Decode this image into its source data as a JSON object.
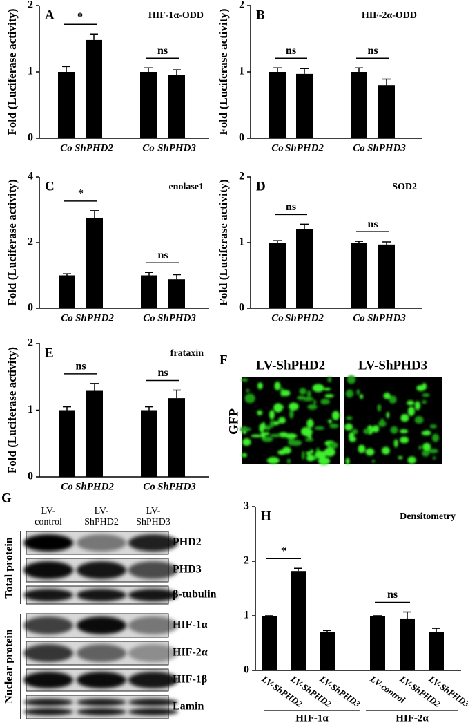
{
  "chart_data": [
    {
      "type": "bar",
      "panel_label": "A",
      "title": "HIF-1α-ODD",
      "ylabel": "Fold (Luciferase activity)",
      "categories": [
        "Co",
        "ShPHD2",
        "Co",
        "ShPHD3"
      ],
      "values": [
        1.0,
        1.48,
        1.0,
        0.95
      ],
      "errors": [
        0.08,
        0.09,
        0.06,
        0.08
      ],
      "color": "#000000",
      "ylim": [
        0,
        2
      ],
      "yticks": [
        0,
        1,
        2
      ],
      "annotations": [
        "*",
        "ns"
      ]
    },
    {
      "type": "bar",
      "panel_label": "B",
      "title": "HIF-2α-ODD",
      "ylabel": "Fold (Luciferase activity)",
      "categories": [
        "Co",
        "ShPHD2",
        "Co",
        "ShPHD3"
      ],
      "values": [
        1.0,
        0.97,
        1.0,
        0.8
      ],
      "errors": [
        0.06,
        0.08,
        0.06,
        0.09
      ],
      "color": "#000000",
      "ylim": [
        0,
        2
      ],
      "yticks": [
        0,
        1,
        2
      ],
      "annotations": [
        "ns",
        "ns"
      ]
    },
    {
      "type": "bar",
      "panel_label": "C",
      "title": "enolase1",
      "ylabel": "Fold (Luciferase activity)",
      "categories": [
        "Co",
        "ShPHD2",
        "Co",
        "ShPHD3"
      ],
      "values": [
        1.0,
        2.75,
        1.0,
        0.88
      ],
      "errors": [
        0.05,
        0.22,
        0.09,
        0.14
      ],
      "color": "#000000",
      "ylim": [
        0,
        4
      ],
      "yticks": [
        0,
        2,
        4
      ],
      "annotations": [
        "*",
        "ns"
      ]
    },
    {
      "type": "bar",
      "panel_label": "D",
      "title": "SOD2",
      "ylabel": "Fold (Luciferase activity)",
      "categories": [
        "Co",
        "ShPHD2",
        "Co",
        "ShPHD3"
      ],
      "values": [
        1.0,
        1.2,
        1.0,
        0.97
      ],
      "errors": [
        0.03,
        0.08,
        0.02,
        0.04
      ],
      "color": "#000000",
      "ylim": [
        0,
        2
      ],
      "yticks": [
        0,
        1,
        2
      ],
      "annotations": [
        "ns",
        "ns"
      ]
    },
    {
      "type": "bar",
      "panel_label": "E",
      "title": "frataxin",
      "ylabel": "Fold (Luciferase activity)",
      "categories": [
        "Co",
        "ShPHD2",
        "Co",
        "ShPHD3"
      ],
      "values": [
        1.0,
        1.29,
        1.0,
        1.18
      ],
      "errors": [
        0.05,
        0.11,
        0.05,
        0.12
      ],
      "color": "#000000",
      "ylim": [
        0,
        2
      ],
      "yticks": [
        0,
        1,
        2
      ],
      "annotations": [
        "ns",
        "ns"
      ]
    },
    {
      "type": "bar",
      "panel_label": "H",
      "title": "Densitometry",
      "categories": [
        "LV-ShPHD2",
        "LV-ShPHD2",
        "LV-ShPHD3",
        "LV-control",
        "LV-ShPHD2",
        "LV-ShPHD3"
      ],
      "values": [
        1.0,
        1.82,
        0.7,
        1.0,
        0.95,
        0.7
      ],
      "errors": [
        0,
        0.05,
        0.03,
        0,
        0.12,
        0.07
      ],
      "groups": [
        "HIF-1α",
        "HIF-2α"
      ],
      "color": "#000000",
      "ylim": [
        0,
        3
      ],
      "yticks": [
        0,
        1,
        2,
        3
      ],
      "annotations": [
        "*",
        "ns"
      ]
    }
  ],
  "panel_f": {
    "label": "F",
    "columns": [
      "LV-ShPHD2",
      "LV-ShPHD3"
    ],
    "ylabel": "GFP"
  },
  "panel_g": {
    "label": "G",
    "columns": [
      [
        "LV-",
        "control"
      ],
      [
        "LV-",
        "ShPHD2"
      ],
      [
        "LV-",
        "ShPHD3"
      ]
    ],
    "rows": [
      "PHD2",
      "PHD3",
      "β-tubulin",
      "HIF-1α",
      "HIF-2α",
      "HIF-1β",
      "Lamin"
    ],
    "groups": [
      "Total protein",
      "Nuclear protein"
    ]
  }
}
